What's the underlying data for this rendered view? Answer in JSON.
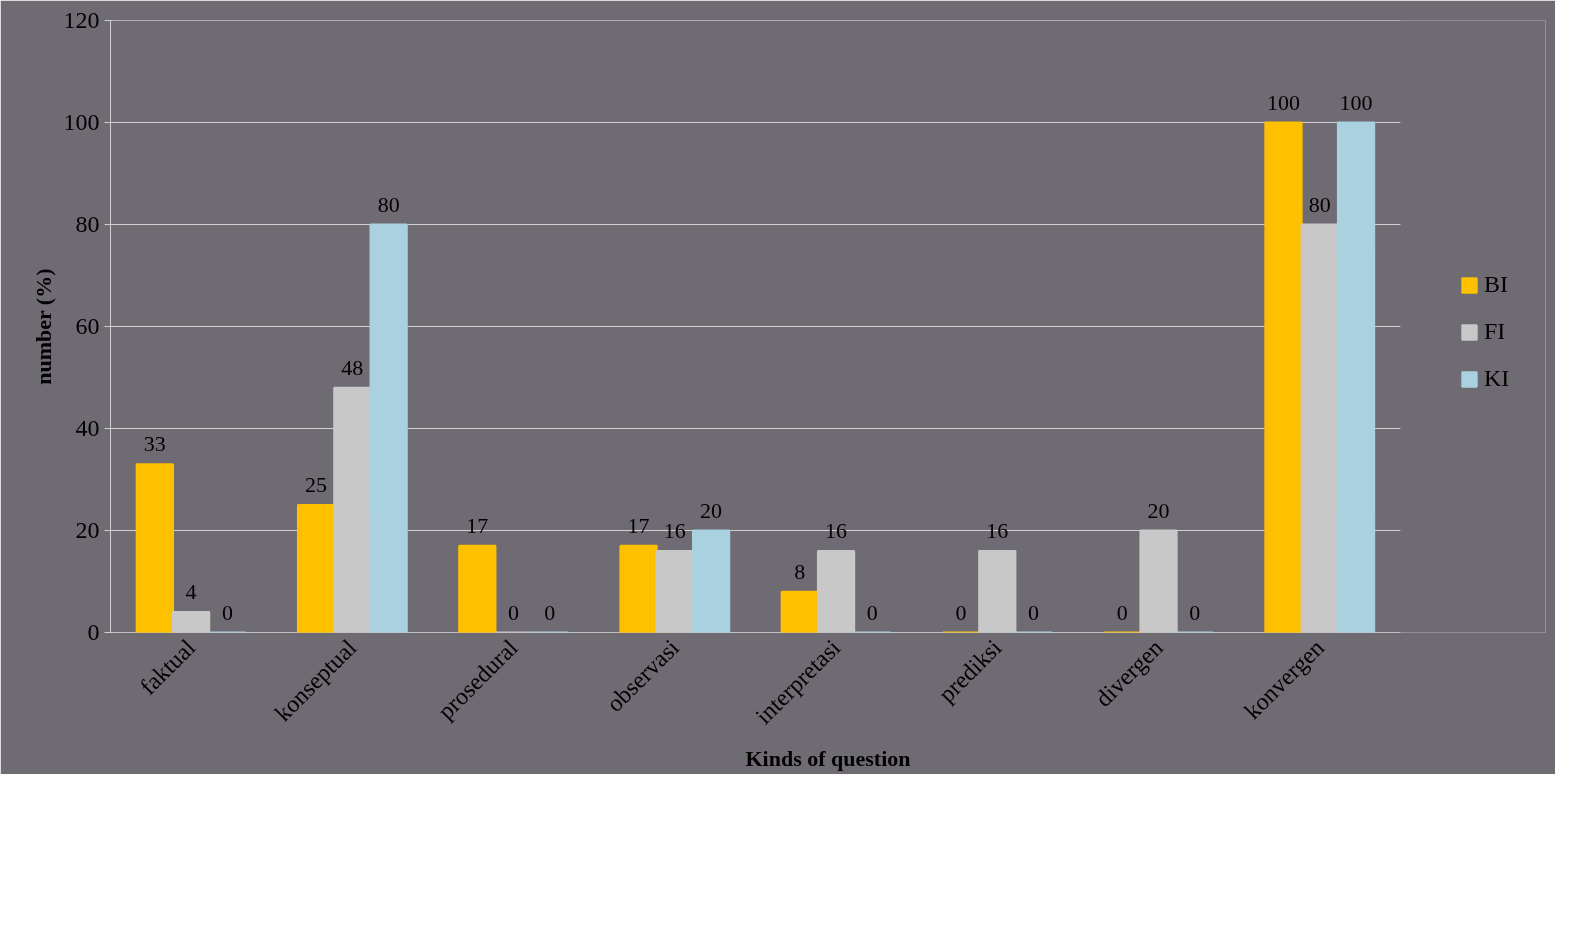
{
  "chart_data": {
    "type": "bar",
    "xlabel": "Kinds of question",
    "ylabel": "number (%)",
    "categories": [
      "faktual",
      "konseptual",
      "prosedural",
      "observasi",
      "interpretasi",
      "prediksi",
      "divergen",
      "konvergen"
    ],
    "series": [
      {
        "name": "BI",
        "color": "#ffc000",
        "values": [
          33,
          25,
          17,
          17,
          8,
          0,
          0,
          100
        ]
      },
      {
        "name": "FI",
        "color": "#c8c8c8",
        "values": [
          4,
          48,
          0,
          16,
          16,
          16,
          20,
          80
        ]
      },
      {
        "name": "KI",
        "color": "#a9d1e0",
        "values": [
          0,
          80,
          0,
          20,
          0,
          0,
          0,
          100
        ]
      }
    ],
    "ylim": [
      0,
      120
    ],
    "yticks": [
      0,
      20,
      40,
      60,
      80,
      100,
      120
    ],
    "grid": "y",
    "legend": "right",
    "data_labels": true
  }
}
